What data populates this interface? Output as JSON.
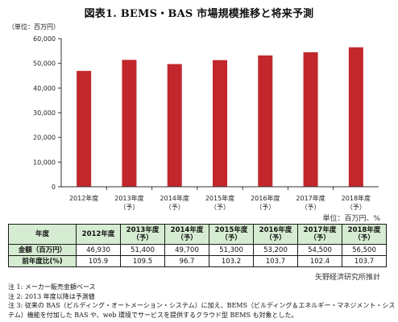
{
  "title": "図表1. BEMS・BAS 市場規模推移と将来予測",
  "unit_label_top": "（単位：百万円）",
  "unit_label_right": "単位：百万円、%",
  "source": "矢野経済研究所推計",
  "colors": {
    "bar": "#c1272d",
    "header_bg": "#d6ecd2"
  },
  "chart_data": {
    "type": "bar",
    "categories": [
      [
        "2012年度",
        ""
      ],
      [
        "2013年度",
        "（予）"
      ],
      [
        "2014年度",
        "（予）"
      ],
      [
        "2015年度",
        "（予）"
      ],
      [
        "2016年度",
        "（予）"
      ],
      [
        "2017年度",
        "（予）"
      ],
      [
        "2018年度",
        "（予）"
      ]
    ],
    "values": [
      46930,
      51400,
      49700,
      51300,
      53200,
      54500,
      56500
    ],
    "ylim": [
      0,
      60000
    ],
    "yticks": [
      "0",
      "10,000",
      "20,000",
      "30,000",
      "40,000",
      "50,000",
      "60,000"
    ],
    "ytick_values": [
      0,
      10000,
      20000,
      30000,
      40000,
      50000,
      60000
    ],
    "grid": false
  },
  "table": {
    "header_label": "年度",
    "columns": [
      [
        "2012年度",
        ""
      ],
      [
        "2013年度",
        "（予）"
      ],
      [
        "2014年度",
        "（予）"
      ],
      [
        "2015年度",
        "（予）"
      ],
      [
        "2016年度",
        "（予）"
      ],
      [
        "2017年度",
        "（予）"
      ],
      [
        "2018年度",
        "（予）"
      ]
    ],
    "rows": [
      {
        "label": "金額（百万円）",
        "values": [
          "46,930",
          "51,400",
          "49,700",
          "51,300",
          "53,200",
          "54,500",
          "56,500"
        ]
      },
      {
        "label": "前年度比(%)",
        "values": [
          "105.9",
          "109.5",
          "96.7",
          "103.2",
          "103.7",
          "102.4",
          "103.7"
        ]
      }
    ]
  },
  "notes": [
    "注 1: メーカー販売金額ベース",
    "注 2: 2013 年度以降は予測値",
    "注 3: 従来の BAS（ビルディング・オートメーション・システム）に加え、BEMS（ビルディング＆エネルギー・マネジメント・シス",
    "テム）機能を付加した BAS や、web 環境でサービスを提供するクラウド型 BEMS も対象とした。"
  ]
}
